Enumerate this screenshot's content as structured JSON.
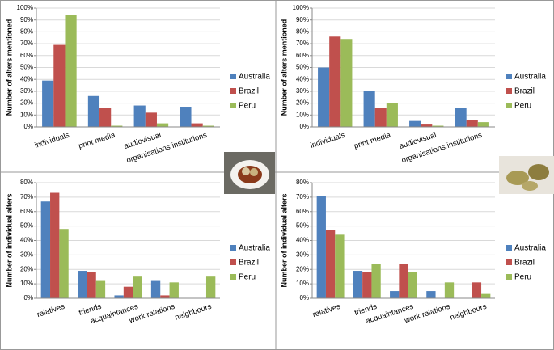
{
  "chart_data": [
    {
      "type": "bar",
      "ylabel": "Number of alters mentioned",
      "categories": [
        "individuals",
        "print media",
        "audiovisual",
        "organisations/institutions"
      ],
      "series": [
        {
          "name": "Australia",
          "color": "#4f81bd",
          "values": [
            39,
            26,
            18,
            17
          ]
        },
        {
          "name": "Brazil",
          "color": "#c0504d",
          "values": [
            69,
            16,
            12,
            3
          ]
        },
        {
          "name": "Peru",
          "color": "#9bbb59",
          "values": [
            94,
            1,
            3,
            1
          ]
        }
      ],
      "ylim": [
        0,
        100
      ],
      "yticks": [
        {
          "value": 0,
          "label": "0%"
        },
        {
          "value": 10,
          "label": "10%"
        },
        {
          "value": 20,
          "label": "20%"
        },
        {
          "value": 30,
          "label": "30%"
        },
        {
          "value": 40,
          "label": "40%"
        },
        {
          "value": 50,
          "label": "50%"
        },
        {
          "value": 60,
          "label": "60%"
        },
        {
          "value": 70,
          "label": "70%"
        },
        {
          "value": 80,
          "label": "80%"
        },
        {
          "value": 90,
          "label": "90%"
        },
        {
          "value": 100,
          "label": "100%"
        }
      ],
      "grid": true
    },
    {
      "type": "bar",
      "ylabel": "Number of alters mentioned",
      "categories": [
        "individuals",
        "print media",
        "audiovisual",
        "organisations/institutions"
      ],
      "series": [
        {
          "name": "Australia",
          "color": "#4f81bd",
          "values": [
            50,
            30,
            5,
            16
          ]
        },
        {
          "name": "Brazil",
          "color": "#c0504d",
          "values": [
            76,
            16,
            2,
            6
          ]
        },
        {
          "name": "Peru",
          "color": "#9bbb59",
          "values": [
            74,
            20,
            1,
            4
          ]
        }
      ],
      "ylim": [
        0,
        100
      ],
      "yticks": [
        {
          "value": 0,
          "label": "0%"
        },
        {
          "value": 10,
          "label": "10%"
        },
        {
          "value": 20,
          "label": "20%"
        },
        {
          "value": 30,
          "label": "30%"
        },
        {
          "value": 40,
          "label": "40%"
        },
        {
          "value": 50,
          "label": "50%"
        },
        {
          "value": 60,
          "label": "60%"
        },
        {
          "value": 70,
          "label": "70%"
        },
        {
          "value": 80,
          "label": "80%"
        },
        {
          "value": 90,
          "label": "90%"
        },
        {
          "value": 100,
          "label": "100%"
        }
      ],
      "grid": true
    },
    {
      "type": "bar",
      "ylabel": "Number of individual alters",
      "categories": [
        "relatives",
        "friends",
        "acquaintances",
        "work relations",
        "neighbours"
      ],
      "series": [
        {
          "name": "Australia",
          "color": "#4f81bd",
          "values": [
            67,
            19,
            2,
            12,
            0
          ]
        },
        {
          "name": "Brazil",
          "color": "#c0504d",
          "values": [
            73,
            18,
            8,
            2,
            0
          ]
        },
        {
          "name": "Peru",
          "color": "#9bbb59",
          "values": [
            48,
            12,
            15,
            11,
            15
          ]
        }
      ],
      "ylim": [
        0,
        80
      ],
      "yticks": [
        {
          "value": 0,
          "label": "0%"
        },
        {
          "value": 10,
          "label": "10%"
        },
        {
          "value": 20,
          "label": "20%"
        },
        {
          "value": 30,
          "label": "30%"
        },
        {
          "value": 40,
          "label": "40%"
        },
        {
          "value": 50,
          "label": "50%"
        },
        {
          "value": 60,
          "label": "60%"
        },
        {
          "value": 70,
          "label": "70%"
        },
        {
          "value": 80,
          "label": "80%"
        }
      ],
      "grid": true
    },
    {
      "type": "bar",
      "ylabel": "Number of individual alters",
      "categories": [
        "relatives",
        "friends",
        "acquaintances",
        "work relations",
        "neighbours"
      ],
      "series": [
        {
          "name": "Australia",
          "color": "#4f81bd",
          "values": [
            71,
            19,
            5,
            5,
            0
          ]
        },
        {
          "name": "Brazil",
          "color": "#c0504d",
          "values": [
            47,
            18,
            24,
            0,
            11
          ]
        },
        {
          "name": "Peru",
          "color": "#9bbb59",
          "values": [
            44,
            24,
            18,
            11,
            3
          ]
        }
      ],
      "ylim": [
        0,
        80
      ],
      "yticks": [
        {
          "value": 0,
          "label": "0%"
        },
        {
          "value": 10,
          "label": "10%"
        },
        {
          "value": 20,
          "label": "20%"
        },
        {
          "value": 30,
          "label": "30%"
        },
        {
          "value": 40,
          "label": "40%"
        },
        {
          "value": 50,
          "label": "50%"
        },
        {
          "value": 60,
          "label": "60%"
        },
        {
          "value": 70,
          "label": "70%"
        },
        {
          "value": 80,
          "label": "80%"
        }
      ],
      "grid": true
    }
  ]
}
